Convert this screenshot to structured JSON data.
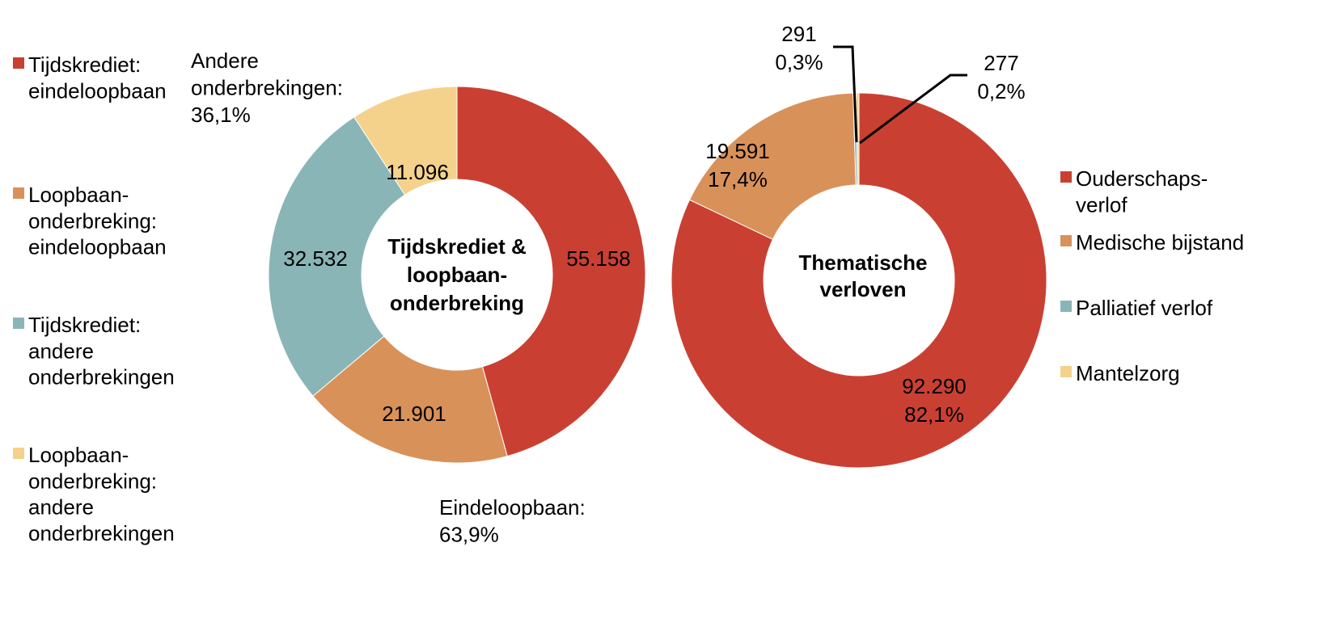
{
  "colors": {
    "red": "#C94033",
    "orange": "#D9915A",
    "teal": "#8AB5B7",
    "yellow": "#F4D28C"
  },
  "chart_data": [
    {
      "type": "pie",
      "donut": true,
      "title": "Tijdskrediet & loopbaan-onderbreking",
      "title_lines": [
        "Tijdskrediet &",
        "loopbaan-",
        "onderbreking"
      ],
      "legend_placement": "left",
      "slices": [
        {
          "name": "Tijdskrediet: eindeloopbaan",
          "legend_lines": [
            "Tijdskrediet:",
            "eindeloopbaan"
          ],
          "value": 55158,
          "label": "55.158",
          "color": "#C94033"
        },
        {
          "name": "Loopbaan-onderbreking: eindeloopbaan",
          "legend_lines": [
            "Loopbaan-",
            "onderbreking:",
            "eindeloopbaan"
          ],
          "value": 21901,
          "label": "21.901",
          "color": "#D9915A"
        },
        {
          "name": "Tijdskrediet: andere onderbrekingen",
          "legend_lines": [
            "Tijdskrediet:",
            "andere",
            "onderbrekingen"
          ],
          "value": 32532,
          "label": "32.532",
          "color": "#8AB5B7"
        },
        {
          "name": "Loopbaan-onderbreking: andere onderbrekingen",
          "legend_lines": [
            "Loopbaan-",
            "onderbreking:",
            "andere",
            "onderbrekingen"
          ],
          "value": 11096,
          "label": "11.096",
          "color": "#F4D28C"
        }
      ],
      "annotations": [
        {
          "lines": [
            "Andere",
            "onderbrekingen:",
            "36,1%"
          ]
        },
        {
          "lines": [
            "Eindeloopbaan:",
            "63,9%"
          ]
        }
      ]
    },
    {
      "type": "pie",
      "donut": true,
      "title": "Thematische verloven",
      "title_lines": [
        "Thematische",
        "verloven"
      ],
      "legend_placement": "right",
      "slices": [
        {
          "name": "Ouderschapsverlof",
          "legend_lines": [
            "Ouderschaps-",
            "verlof"
          ],
          "value": 92290,
          "label": "92.290",
          "percent": "82,1%",
          "color": "#C94033"
        },
        {
          "name": "Medische bijstand",
          "legend_lines": [
            "Medische bijstand"
          ],
          "value": 19591,
          "label": "19.591",
          "percent": "17,4%",
          "color": "#D9915A"
        },
        {
          "name": "Palliatief verlof",
          "legend_lines": [
            "Palliatief verlof"
          ],
          "value": 291,
          "label": "291",
          "percent": "0,3%",
          "color": "#8AB5B7"
        },
        {
          "name": "Mantelzorg",
          "legend_lines": [
            "Mantelzorg"
          ],
          "value": 277,
          "label": "277",
          "percent": "0,2%",
          "color": "#F4D28C"
        }
      ]
    }
  ]
}
